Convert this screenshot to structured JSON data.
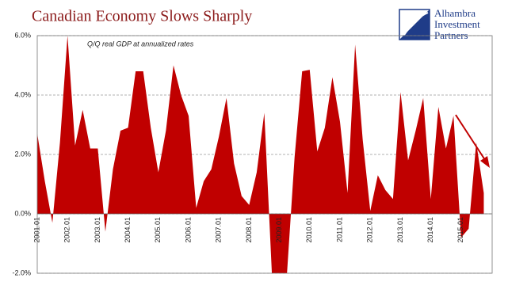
{
  "chart_data": {
    "type": "area",
    "title": "Canadian Economy Slows Sharply",
    "annotation": "Q/Q real GDP at annualized rates",
    "logo": [
      "Alhambra",
      "Investment",
      "Partners"
    ],
    "categories": [
      "2001.01",
      null,
      null,
      null,
      "2002.01",
      null,
      null,
      null,
      "2003.01",
      null,
      null,
      null,
      "2004.01",
      null,
      null,
      null,
      "2005.01",
      null,
      null,
      null,
      "2006.01",
      null,
      null,
      null,
      "2007.01",
      null,
      null,
      null,
      "2008.01",
      null,
      null,
      null,
      "2009.01",
      null,
      null,
      null,
      "2010.01",
      null,
      null,
      null,
      "2011.01",
      null,
      null,
      null,
      "2012.01",
      null,
      null,
      null,
      "2013.01",
      null,
      null,
      null,
      "2014.01",
      null,
      null,
      null,
      "2015.01",
      null,
      null,
      null
    ],
    "values": [
      2.7,
      1.1,
      -0.3,
      2.4,
      6.0,
      2.3,
      3.5,
      2.2,
      2.2,
      -0.6,
      1.5,
      2.8,
      2.9,
      4.8,
      4.8,
      2.9,
      1.4,
      2.8,
      5.0,
      4.0,
      3.3,
      0.2,
      1.1,
      1.5,
      2.6,
      3.9,
      1.7,
      0.6,
      0.3,
      1.4,
      3.4,
      -2.0,
      -2.0,
      -2.0,
      1.9,
      4.8,
      4.85,
      2.1,
      2.9,
      4.6,
      3.1,
      0.7,
      5.7,
      2.5,
      0.1,
      1.3,
      0.8,
      0.5,
      4.1,
      1.8,
      2.8,
      3.9,
      0.5,
      3.6,
      2.2,
      3.3,
      -0.8,
      -0.5,
      2.4,
      0.7
    ],
    "color": "#c00000",
    "ylim": [
      -2,
      6
    ],
    "yticks": [
      {
        "value": -2,
        "label": "-2.0%"
      },
      {
        "value": 0,
        "label": "0.0%"
      },
      {
        "value": 2,
        "label": "2.0%"
      },
      {
        "value": 4,
        "label": "4.0%"
      },
      {
        "value": 6,
        "label": "6.0%"
      }
    ],
    "grid": true
  }
}
